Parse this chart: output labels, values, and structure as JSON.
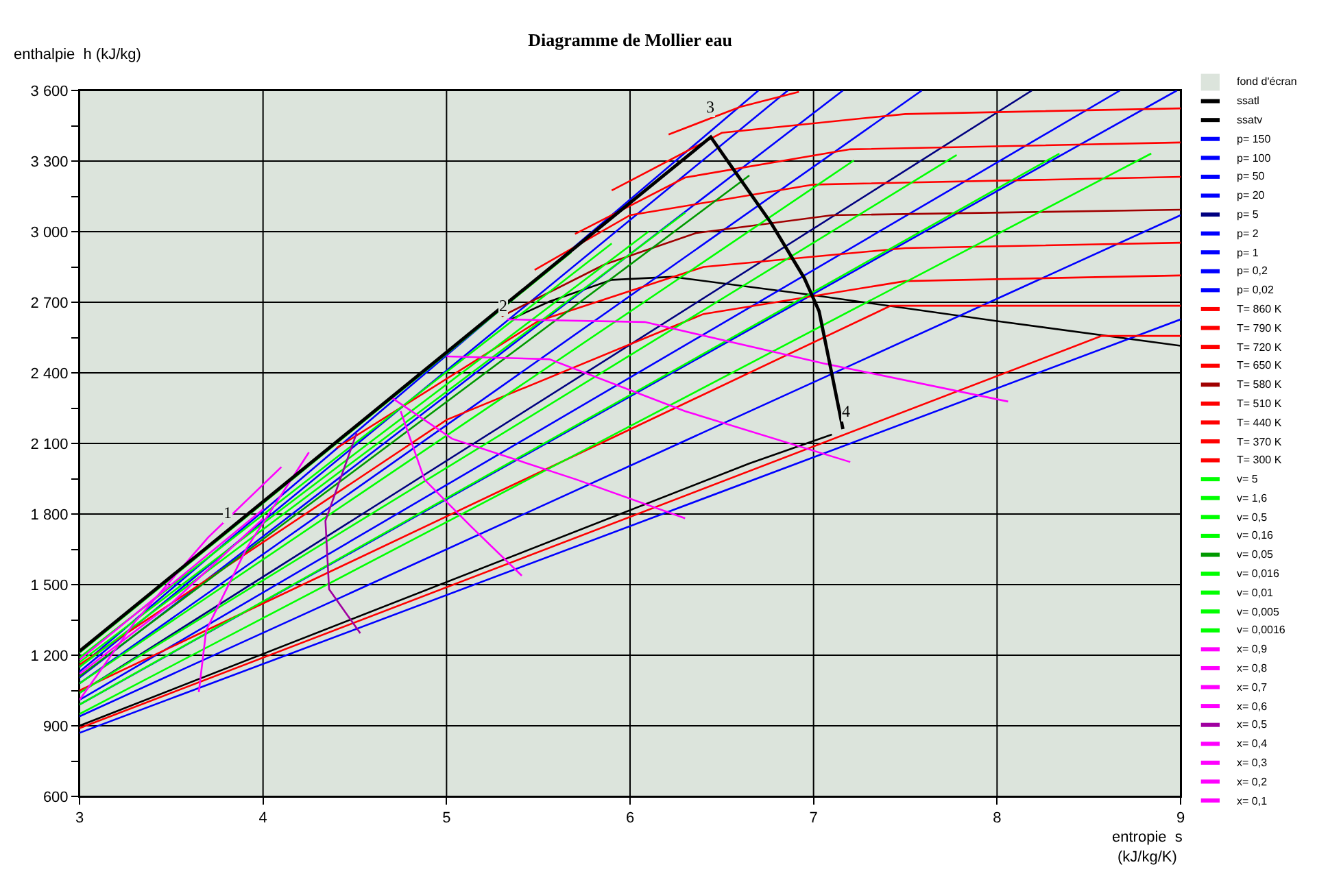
{
  "chart_data": {
    "type": "line",
    "title": "Diagramme de Mollier eau",
    "xlabel": "entropie  s\n(kJ/kg/K)",
    "ylabel": "enthalpie  h (kJ/kg)",
    "xlim": [
      3,
      9
    ],
    "xticks": [
      3,
      4,
      5,
      6,
      7,
      8,
      9
    ],
    "ylim": [
      600,
      3600
    ],
    "yticks": [
      {
        "value": 600,
        "label": "600"
      },
      {
        "value": 750,
        "label": null
      },
      {
        "value": 900,
        "label": "900"
      },
      {
        "value": 1050,
        "label": null
      },
      {
        "value": 1200,
        "label": "1 200"
      },
      {
        "value": 1350,
        "label": null
      },
      {
        "value": 1500,
        "label": "1 500"
      },
      {
        "value": 1650,
        "label": null
      },
      {
        "value": 1800,
        "label": "1 800"
      },
      {
        "value": 1950,
        "label": null
      },
      {
        "value": 2100,
        "label": "2 100"
      },
      {
        "value": 2250,
        "label": null
      },
      {
        "value": 2400,
        "label": "2 400"
      },
      {
        "value": 2550,
        "label": null
      },
      {
        "value": 2700,
        "label": "2 700"
      },
      {
        "value": 2850,
        "label": null
      },
      {
        "value": 3000,
        "label": "3 000"
      },
      {
        "value": 3150,
        "label": null
      },
      {
        "value": 3300,
        "label": "3 300"
      },
      {
        "value": 3450,
        "label": null
      },
      {
        "value": 3600,
        "label": "3 600"
      }
    ],
    "grid": true,
    "legend": "right",
    "marker": "none",
    "line_style": "solid",
    "annotations": [
      {
        "text": "3",
        "x": 6.48,
        "y": 3470
      },
      {
        "text": "4",
        "x": 7.22,
        "y": 2180
      },
      {
        "text": "2",
        "x": 5.35,
        "y": 2627
      },
      {
        "text": "1",
        "x": 3.85,
        "y": 1745
      }
    ],
    "series": [
      {
        "name": "fond d'écran",
        "type": "area",
        "color": "#dce4dc",
        "x": [
          3,
          9
        ],
        "values": [
          3600,
          3600
        ]
      },
      {
        "name": "ssatl",
        "color": "#000000",
        "x": [
          3,
          6.65,
          7.1
        ],
        "values": [
          900,
          2015,
          2138
        ]
      },
      {
        "name": "ssatv",
        "color": "#000000",
        "x": [
          5.35,
          5.56,
          5.9,
          6.23,
          6.98,
          8.0,
          9
        ],
        "values": [
          2627,
          2703,
          2795,
          2808,
          2732,
          2620,
          2515
        ]
      },
      {
        "name": "p= 150",
        "color": "#0000ff",
        "x": [
          3,
          6.7
        ],
        "values": [
          1150,
          3600
        ]
      },
      {
        "name": "p= 100",
        "color": "#0000ff",
        "x": [
          3,
          6.86
        ],
        "values": [
          1130,
          3600
        ]
      },
      {
        "name": "p= 50",
        "color": "#0000ff",
        "x": [
          3,
          7.16
        ],
        "values": [
          1105,
          3600
        ]
      },
      {
        "name": "p= 20",
        "color": "#0000ff",
        "x": [
          3,
          7.59
        ],
        "values": [
          1080,
          3600
        ]
      },
      {
        "name": "p= 5",
        "color": "#000080",
        "x": [
          3,
          8.19
        ],
        "values": [
          1040,
          3600
        ]
      },
      {
        "name": "p= 2",
        "color": "#0000ff",
        "x": [
          3,
          8.67
        ],
        "values": [
          1010,
          3600
        ]
      },
      {
        "name": "p= 1",
        "color": "#0000ff",
        "x": [
          3,
          8.98
        ],
        "values": [
          990,
          3600
        ]
      },
      {
        "name": "p= 0,2",
        "color": "#0000ff",
        "x": [
          3,
          9
        ],
        "values": [
          940,
          3070
        ]
      },
      {
        "name": "p= 0,02",
        "color": "#0000ff",
        "x": [
          3,
          9
        ],
        "values": [
          870,
          2627
        ]
      },
      {
        "name": "T= 860 K",
        "color": "#ff0000",
        "x": [
          6.21,
          6.6,
          6.92
        ],
        "values": [
          3413,
          3530,
          3594
        ]
      },
      {
        "name": "T= 790 K",
        "color": "#ff0000",
        "x": [
          5.9,
          6.5,
          7.5,
          9
        ],
        "values": [
          3175,
          3420,
          3500,
          3524
        ]
      },
      {
        "name": "T= 720 K",
        "color": "#ff0000",
        "x": [
          5.7,
          6.3,
          7.2,
          9
        ],
        "values": [
          2990,
          3230,
          3350,
          3379
        ]
      },
      {
        "name": "T= 650 K",
        "color": "#ff0000",
        "x": [
          5.48,
          6.0,
          7.0,
          9
        ],
        "values": [
          2837,
          3070,
          3200,
          3233
        ]
      },
      {
        "name": "T= 580 K",
        "color": "#a00000",
        "x": [
          5.3,
          5.86,
          6.36,
          7.1,
          9
        ],
        "values": [
          2640,
          2860,
          2994,
          3070,
          3093
        ]
      },
      {
        "name": "T= 510 K",
        "color": "#ff0000",
        "x": [
          4.4,
          5.5,
          6.4,
          7.5,
          9
        ],
        "values": [
          2080,
          2620,
          2850,
          2930,
          2953
        ]
      },
      {
        "name": "T= 440 K",
        "color": "#ff0000",
        "x": [
          3,
          5.0,
          6.4,
          7.5,
          9
        ],
        "values": [
          1160,
          2200,
          2650,
          2790,
          2814
        ]
      },
      {
        "name": "T= 370 K",
        "color": "#ff0000",
        "x": [
          3,
          7.42,
          9
        ],
        "values": [
          1050,
          2685,
          2685
        ]
      },
      {
        "name": "T= 300 K",
        "color": "#ff0000",
        "x": [
          3,
          8.57,
          9
        ],
        "values": [
          890,
          2557,
          2557
        ]
      },
      {
        "name": "v= 5",
        "color": "#00ff00",
        "x": [
          3,
          8.84
        ],
        "values": [
          950,
          3332
        ]
      },
      {
        "name": "v= 1,6",
        "color": "#00ff00",
        "x": [
          3,
          8.34
        ],
        "values": [
          990,
          3332
        ]
      },
      {
        "name": "v= 0,5",
        "color": "#00ff00",
        "x": [
          3,
          7.78
        ],
        "values": [
          1040,
          3326
        ]
      },
      {
        "name": "v= 0,16",
        "color": "#00ff00",
        "x": [
          3,
          7.22
        ],
        "values": [
          1080,
          3303
        ]
      },
      {
        "name": "v= 0,05",
        "color": "#009900",
        "x": [
          3,
          6.65
        ],
        "values": [
          1110,
          3239
        ]
      },
      {
        "name": "v= 0,016",
        "color": "#00ff00",
        "x": [
          3,
          6.3
        ],
        "values": [
          1150,
          3080
        ]
      },
      {
        "name": "v= 0,01",
        "color": "#00ff00",
        "x": [
          3,
          6.1
        ],
        "values": [
          1170,
          3000
        ]
      },
      {
        "name": "v= 0,005",
        "color": "#00ff00",
        "x": [
          3,
          5.9
        ],
        "values": [
          1190,
          2950
        ]
      },
      {
        "name": "v= 0,0016",
        "color": "#00ff00",
        "x": [
          3,
          5.68
        ],
        "values": [
          1210,
          2913
        ]
      },
      {
        "name": "x= 0,9",
        "color": "#ff00ff",
        "x": [
          5.33,
          6.08,
          7.05,
          8.06
        ],
        "values": [
          2627,
          2616,
          2441,
          2278
        ]
      },
      {
        "name": "x= 0,8",
        "color": "#ff00ff",
        "x": [
          5.0,
          5.56,
          6.3,
          7.2
        ],
        "values": [
          2470,
          2458,
          2237,
          2021
        ]
      },
      {
        "name": "x= 0,7",
        "color": "#ff00ff",
        "x": [
          4.7,
          5.03,
          5.71,
          6.3
        ],
        "values": [
          2295,
          2120,
          1946,
          1782
        ]
      },
      {
        "name": "x= 0,6",
        "color": "#ff00ff",
        "x": [
          4.75,
          4.88,
          5.14,
          5.41
        ],
        "values": [
          2237,
          1946,
          1742,
          1538
        ]
      },
      {
        "name": "x= 0,5",
        "color": "#a000a0",
        "x": [
          4.51,
          4.34,
          4.36,
          4.53
        ],
        "values": [
          2144,
          1771,
          1480,
          1293
        ]
      },
      {
        "name": "x= 0,4",
        "color": "#ff00ff",
        "x": [
          4.25,
          3.91,
          3.69,
          3.65
        ],
        "values": [
          2062,
          1654,
          1305,
          1043
        ]
      },
      {
        "name": "x= 0,3",
        "color": "#ff00ff",
        "x": [
          4.1,
          3.7,
          3.3,
          3
        ],
        "values": [
          2000,
          1700,
          1340,
          1010
        ]
      },
      {
        "name": "x= 0,2",
        "color": "#ff00ff",
        "x": [
          3,
          3.5,
          4.0
        ],
        "values": [
          1120,
          1420,
          1780
        ]
      },
      {
        "name": "x= 0,1",
        "color": "#ff00ff",
        "x": [
          3,
          3.5,
          4.0
        ],
        "values": [
          1180,
          1500,
          1820
        ]
      },
      {
        "color": "#000000",
        "x": [
          3,
          6.44,
          6.77,
          6.95,
          7.03,
          7.1,
          7.16
        ],
        "values": [
          1217,
          3402,
          3035,
          2802,
          2662,
          2394,
          2161
        ]
      }
    ]
  }
}
